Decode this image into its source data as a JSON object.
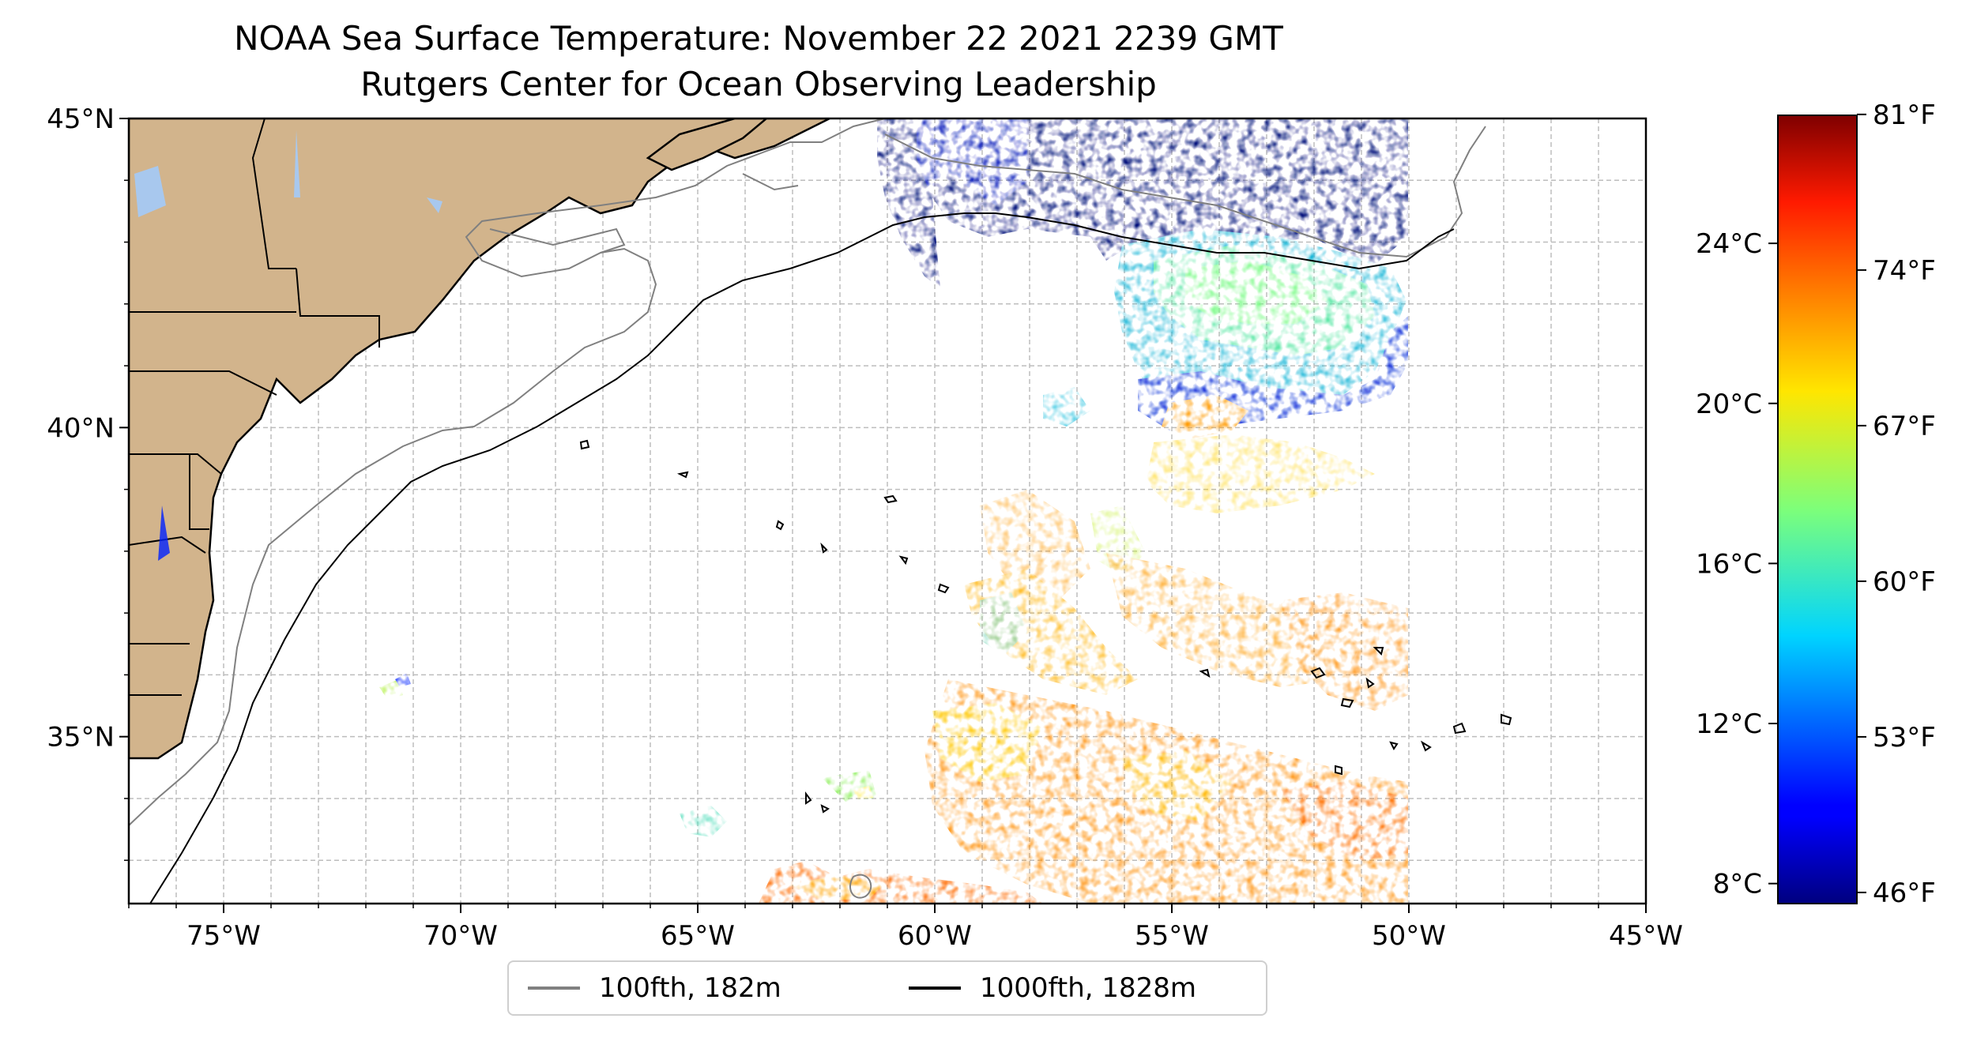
{
  "title": "NOAA Sea Surface Temperature: November 22 2021 2239 GMT",
  "subtitle": "Rutgers Center for Ocean Observing Leadership",
  "map": {
    "lon_range": [
      -77,
      -45
    ],
    "lat_range": [
      32.3,
      45
    ],
    "lon_ticks": [
      {
        "lon": -75,
        "label": "75°W"
      },
      {
        "lon": -70,
        "label": "70°W"
      },
      {
        "lon": -65,
        "label": "65°W"
      },
      {
        "lon": -60,
        "label": "60°W"
      },
      {
        "lon": -55,
        "label": "55°W"
      },
      {
        "lon": -50,
        "label": "50°W"
      },
      {
        "lon": -45,
        "label": "45°W"
      }
    ],
    "lat_ticks": [
      {
        "lat": 45,
        "label": "45°N"
      },
      {
        "lat": 40,
        "label": "40°N"
      },
      {
        "lat": 35,
        "label": "35°N"
      }
    ],
    "grid": true,
    "land_color": "#d2b48c",
    "lake_color": "#a8c8ee"
  },
  "colorbar": {
    "colormap": "jet",
    "range_c": [
      7.5,
      27.2
    ],
    "celsius_ticks": [
      {
        "value": 8,
        "label": "8°C"
      },
      {
        "value": 12,
        "label": "12°C"
      },
      {
        "value": 16,
        "label": "16°C"
      },
      {
        "value": 20,
        "label": "20°C"
      },
      {
        "value": 24,
        "label": "24°C"
      }
    ],
    "fahrenheit_ticks": [
      {
        "value": 46,
        "label": "46°F"
      },
      {
        "value": 53,
        "label": "53°F"
      },
      {
        "value": 60,
        "label": "60°F"
      },
      {
        "value": 67,
        "label": "67°F"
      },
      {
        "value": 74,
        "label": "74°F"
      },
      {
        "value": 81,
        "label": "81°F"
      }
    ]
  },
  "legend": {
    "items": [
      {
        "label": "100fth, 182m",
        "color": "#808080"
      },
      {
        "label": "1000fth, 1828m",
        "color": "#000000"
      }
    ]
  }
}
